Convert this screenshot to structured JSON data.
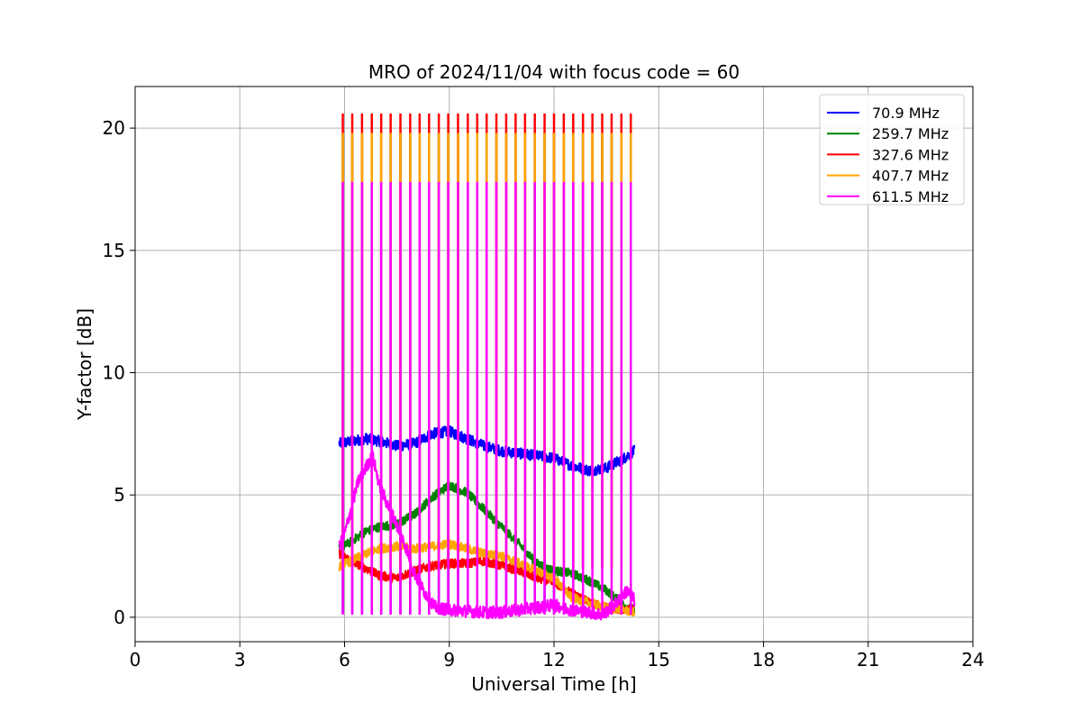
{
  "chart_data": {
    "type": "line",
    "title": "MRO of 2024/11/04 with focus code = 60",
    "xlabel": "Universal Time [h]",
    "ylabel": "Y-factor [dB]",
    "xlim": [
      0,
      24
    ],
    "ylim": [
      -1.0,
      21.7
    ],
    "xticks": [
      0,
      3,
      6,
      9,
      12,
      15,
      18,
      21,
      24
    ],
    "yticks": [
      0,
      5,
      10,
      15,
      20
    ],
    "grid": true,
    "legend_position": "top-right",
    "spike_times_h": [
      5.95,
      6.22,
      6.5,
      6.78,
      7.05,
      7.32,
      7.6,
      7.88,
      8.15,
      8.42,
      8.7,
      8.97,
      9.25,
      9.53,
      9.8,
      10.07,
      10.35,
      10.63,
      10.9,
      11.17,
      11.45,
      11.73,
      12.0,
      12.28,
      12.55,
      12.83,
      13.1,
      13.38,
      13.65,
      13.93,
      14.2
    ],
    "series": [
      {
        "name": " 70.9 MHz",
        "color": "#0000ff",
        "x": [
          5.85,
          6.2,
          6.6,
          7.0,
          7.5,
          8.0,
          8.5,
          9.0,
          9.5,
          10.0,
          10.5,
          11.0,
          11.5,
          12.0,
          12.5,
          13.0,
          13.5,
          14.0,
          14.3
        ],
        "y": [
          7.1,
          7.2,
          7.3,
          7.2,
          7.0,
          7.1,
          7.5,
          7.6,
          7.3,
          7.0,
          6.8,
          6.7,
          6.6,
          6.5,
          6.2,
          6.0,
          6.1,
          6.5,
          6.8
        ],
        "spike_top": 7.3,
        "spike_bottom": 0.15,
        "spike_end_h": 12.0
      },
      {
        "name": "259.7 MHz",
        "color": "#008000",
        "x": [
          5.85,
          6.2,
          6.6,
          7.0,
          7.5,
          8.0,
          8.5,
          9.0,
          9.5,
          10.0,
          10.5,
          11.0,
          11.5,
          12.0,
          12.5,
          13.0,
          13.5,
          14.0,
          14.3
        ],
        "y": [
          2.8,
          3.1,
          3.5,
          3.7,
          3.8,
          4.2,
          4.9,
          5.4,
          5.1,
          4.4,
          3.7,
          3.0,
          2.2,
          1.9,
          1.8,
          1.5,
          1.1,
          0.5,
          0.3
        ],
        "spike_top": 19.8,
        "spike_bottom": 2.0
      },
      {
        "name": "327.6 MHz",
        "color": "#ff0000",
        "x": [
          5.85,
          6.2,
          6.6,
          7.0,
          7.5,
          8.0,
          8.5,
          9.0,
          9.5,
          10.0,
          10.5,
          11.0,
          11.5,
          12.0,
          12.5,
          13.0,
          13.5,
          14.0,
          14.3
        ],
        "y": [
          2.6,
          2.3,
          2.0,
          1.7,
          1.6,
          1.9,
          2.1,
          2.2,
          2.2,
          2.3,
          2.1,
          1.9,
          1.6,
          1.4,
          1.0,
          0.6,
          0.4,
          0.3,
          0.3
        ],
        "spike_top": 20.6,
        "spike_bottom": 2.0
      },
      {
        "name": "407.7 MHz",
        "color": "#ffa500",
        "x": [
          5.85,
          6.2,
          6.6,
          7.0,
          7.5,
          8.0,
          8.5,
          9.0,
          9.5,
          10.0,
          10.5,
          11.0,
          11.5,
          12.0,
          12.5,
          13.0,
          13.5,
          14.0,
          14.3
        ],
        "y": [
          2.1,
          2.3,
          2.6,
          2.8,
          2.9,
          2.8,
          2.9,
          3.0,
          2.8,
          2.6,
          2.5,
          2.2,
          1.9,
          1.6,
          0.8,
          0.6,
          0.4,
          0.3,
          0.2
        ],
        "spike_top": 19.8,
        "spike_bottom": 2.0
      },
      {
        "name": "611.5 MHz",
        "color": "#ff00ff",
        "x": [
          5.85,
          6.0,
          6.2,
          6.4,
          6.6,
          6.8,
          7.0,
          7.2,
          7.4,
          7.6,
          7.8,
          8.0,
          8.3,
          8.6,
          9.0,
          9.5,
          10.0,
          10.5,
          11.0,
          11.5,
          12.0,
          12.5,
          13.0,
          13.4,
          13.8,
          14.1,
          14.3
        ],
        "y": [
          2.9,
          3.4,
          4.5,
          5.6,
          6.1,
          6.6,
          5.4,
          4.7,
          4.1,
          3.4,
          2.7,
          1.8,
          1.0,
          0.4,
          0.3,
          0.25,
          0.2,
          0.2,
          0.3,
          0.4,
          0.5,
          0.3,
          0.2,
          0.1,
          0.6,
          1.1,
          0.7
        ],
        "spike_top": 17.8,
        "spike_bottom": 0.1
      }
    ]
  }
}
